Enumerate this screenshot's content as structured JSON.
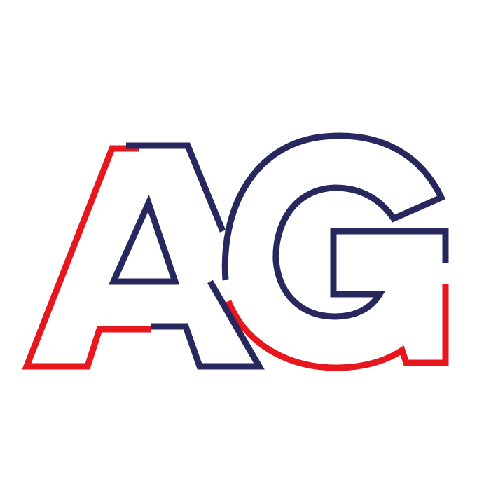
{
  "logo": {
    "text": "AG",
    "letters": [
      "A",
      "G"
    ],
    "style": "outline monogram"
  },
  "colors": {
    "background": "#ffffff",
    "red": "#e8161d",
    "navy": "#28285e"
  }
}
